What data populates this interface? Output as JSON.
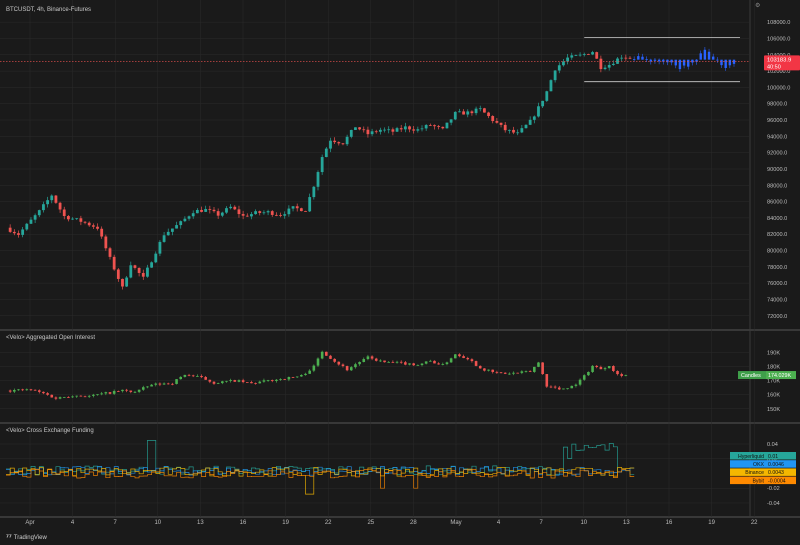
{
  "header": {
    "symbol_title": "BTCUSDT, 4h, Binance-Futures",
    "oi_title": "<Velo> Aggregated Open Interest",
    "funding_title": "<Velo> Cross Exchange Funding"
  },
  "footer": {
    "brand": "TradingView"
  },
  "colors": {
    "up": "#26a69a",
    "up_bright": "#4caf50",
    "down": "#ef5350",
    "proj": "#2962ff",
    "bg": "#1a1a1a",
    "grid": "#2b2b2b",
    "sep": "#555555"
  },
  "x_axis": {
    "labels": [
      "Apr",
      "4",
      "7",
      "10",
      "13",
      "16",
      "19",
      "22",
      "25",
      "28",
      "May",
      "4",
      "7",
      "10",
      "13",
      "16",
      "19",
      "22"
    ]
  },
  "chart_data": [
    {
      "type": "candlestick",
      "title": "BTCUSDT, 4h, Binance-Futures",
      "ylim": [
        70500,
        109000
      ],
      "y_ticks": [
        72000,
        74000,
        76000,
        78000,
        80000,
        82000,
        84000,
        86000,
        88000,
        90000,
        92000,
        94000,
        96000,
        98000,
        100000,
        102000,
        104000,
        106000,
        108000
      ],
      "y_tick_labels": [
        "72000.0",
        "74000.0",
        "76000.0",
        "78000.0",
        "80000.0",
        "82000.0",
        "84000.0",
        "86000.0",
        "88000.0",
        "90000.0",
        "92000.0",
        "94000.0",
        "96000.0",
        "98000.0",
        "100000.0",
        "102000.0",
        "104000.0",
        "106000.0",
        "108000.0"
      ],
      "last_price": 103183.9,
      "last_price_label": "103183.9",
      "countdown": "40:50",
      "range_box": {
        "high": 106100,
        "low": 100700,
        "mid": 103400
      },
      "anchors": [
        {
          "x": 0,
          "y": 82800
        },
        {
          "x": 3,
          "y": 82000
        },
        {
          "x": 8,
          "y": 84800
        },
        {
          "x": 11,
          "y": 86800
        },
        {
          "x": 14,
          "y": 84200
        },
        {
          "x": 18,
          "y": 83600
        },
        {
          "x": 22,
          "y": 82800
        },
        {
          "x": 25,
          "y": 79000
        },
        {
          "x": 28,
          "y": 75400
        },
        {
          "x": 30,
          "y": 78400
        },
        {
          "x": 33,
          "y": 76600
        },
        {
          "x": 35,
          "y": 78800
        },
        {
          "x": 38,
          "y": 82000
        },
        {
          "x": 42,
          "y": 83400
        },
        {
          "x": 45,
          "y": 84800
        },
        {
          "x": 48,
          "y": 85000
        },
        {
          "x": 51,
          "y": 84400
        },
        {
          "x": 54,
          "y": 85300
        },
        {
          "x": 57,
          "y": 84200
        },
        {
          "x": 60,
          "y": 84600
        },
        {
          "x": 63,
          "y": 84700
        },
        {
          "x": 66,
          "y": 84400
        },
        {
          "x": 69,
          "y": 85200
        },
        {
          "x": 72,
          "y": 85000
        },
        {
          "x": 74,
          "y": 88000
        },
        {
          "x": 76,
          "y": 91500
        },
        {
          "x": 78,
          "y": 93600
        },
        {
          "x": 81,
          "y": 93200
        },
        {
          "x": 84,
          "y": 95200
        },
        {
          "x": 87,
          "y": 94300
        },
        {
          "x": 90,
          "y": 94800
        },
        {
          "x": 93,
          "y": 94600
        },
        {
          "x": 96,
          "y": 95100
        },
        {
          "x": 99,
          "y": 94800
        },
        {
          "x": 102,
          "y": 95400
        },
        {
          "x": 105,
          "y": 94800
        },
        {
          "x": 108,
          "y": 96800
        },
        {
          "x": 111,
          "y": 96900
        },
        {
          "x": 114,
          "y": 97300
        },
        {
          "x": 117,
          "y": 96000
        },
        {
          "x": 120,
          "y": 94800
        },
        {
          "x": 123,
          "y": 94300
        },
        {
          "x": 126,
          "y": 95800
        },
        {
          "x": 128,
          "y": 97500
        },
        {
          "x": 130,
          "y": 99500
        },
        {
          "x": 132,
          "y": 102300
        },
        {
          "x": 135,
          "y": 103600
        },
        {
          "x": 138,
          "y": 103900
        },
        {
          "x": 141,
          "y": 104400
        },
        {
          "x": 143,
          "y": 102500
        },
        {
          "x": 145,
          "y": 102800
        },
        {
          "x": 148,
          "y": 103800
        },
        {
          "x": 150,
          "y": 103700
        }
      ],
      "projection_anchors": [
        {
          "x": 150,
          "y": 103700
        },
        {
          "x": 153,
          "y": 103500
        },
        {
          "x": 156,
          "y": 103000
        },
        {
          "x": 159,
          "y": 102900
        },
        {
          "x": 162,
          "y": 102400
        },
        {
          "x": 165,
          "y": 102800
        },
        {
          "x": 168,
          "y": 104500
        },
        {
          "x": 170,
          "y": 103800
        },
        {
          "x": 172,
          "y": 102500
        },
        {
          "x": 175,
          "y": 103100
        }
      ]
    },
    {
      "type": "candlestick",
      "title": "<Velo> Aggregated Open Interest",
      "ylim": [
        142000,
        199000
      ],
      "y_ticks": [
        150000,
        160000,
        170000,
        180000,
        190000
      ],
      "y_tick_labels": [
        "150K",
        "160K",
        "170K",
        "180K",
        "190K"
      ],
      "last_label": "Candles",
      "last_value": "174.029K",
      "anchors": [
        {
          "x": 0,
          "y": 163000
        },
        {
          "x": 6,
          "y": 163500
        },
        {
          "x": 9,
          "y": 161000
        },
        {
          "x": 12,
          "y": 157500
        },
        {
          "x": 16,
          "y": 159500
        },
        {
          "x": 20,
          "y": 159000
        },
        {
          "x": 25,
          "y": 161500
        },
        {
          "x": 28,
          "y": 163000
        },
        {
          "x": 31,
          "y": 162000
        },
        {
          "x": 35,
          "y": 167000
        },
        {
          "x": 40,
          "y": 168500
        },
        {
          "x": 43,
          "y": 174500
        },
        {
          "x": 47,
          "y": 172000
        },
        {
          "x": 50,
          "y": 168500
        },
        {
          "x": 55,
          "y": 170000
        },
        {
          "x": 59,
          "y": 168000
        },
        {
          "x": 63,
          "y": 170000
        },
        {
          "x": 68,
          "y": 172000
        },
        {
          "x": 71,
          "y": 173500
        },
        {
          "x": 74,
          "y": 180000
        },
        {
          "x": 76,
          "y": 191000
        },
        {
          "x": 79,
          "y": 184000
        },
        {
          "x": 82,
          "y": 178000
        },
        {
          "x": 85,
          "y": 183500
        },
        {
          "x": 87,
          "y": 186500
        },
        {
          "x": 91,
          "y": 183000
        },
        {
          "x": 95,
          "y": 182500
        },
        {
          "x": 99,
          "y": 181500
        },
        {
          "x": 102,
          "y": 184000
        },
        {
          "x": 105,
          "y": 181000
        },
        {
          "x": 108,
          "y": 189000
        },
        {
          "x": 111,
          "y": 186000
        },
        {
          "x": 114,
          "y": 179000
        },
        {
          "x": 117,
          "y": 176000
        },
        {
          "x": 120,
          "y": 175000
        },
        {
          "x": 123,
          "y": 175500
        },
        {
          "x": 126,
          "y": 176500
        },
        {
          "x": 128,
          "y": 183000
        },
        {
          "x": 130,
          "y": 166500
        },
        {
          "x": 133,
          "y": 164000
        },
        {
          "x": 136,
          "y": 166000
        },
        {
          "x": 138,
          "y": 170000
        },
        {
          "x": 141,
          "y": 180500
        },
        {
          "x": 143,
          "y": 178500
        },
        {
          "x": 145,
          "y": 181000
        },
        {
          "x": 147,
          "y": 174500
        },
        {
          "x": 149,
          "y": 174000
        }
      ]
    },
    {
      "type": "line",
      "title": "<Velo> Cross Exchange Funding",
      "ylim": [
        -0.055,
        0.055
      ],
      "y_ticks": [
        -0.04,
        -0.02,
        0.02,
        0.04
      ],
      "y_tick_labels": [
        "-0.04",
        "-0.02",
        "0.02",
        "0.04"
      ],
      "series": [
        {
          "name": "Hyperliquid",
          "color": "#26a69a",
          "last": "0.01"
        },
        {
          "name": "OKX",
          "color": "#2196f3",
          "last": "0.0046"
        },
        {
          "name": "Binance",
          "color": "#f5b700",
          "last": "0.0043"
        },
        {
          "name": "Bybit",
          "color": "#ff8a00",
          "last": "-0.0004"
        }
      ]
    }
  ]
}
